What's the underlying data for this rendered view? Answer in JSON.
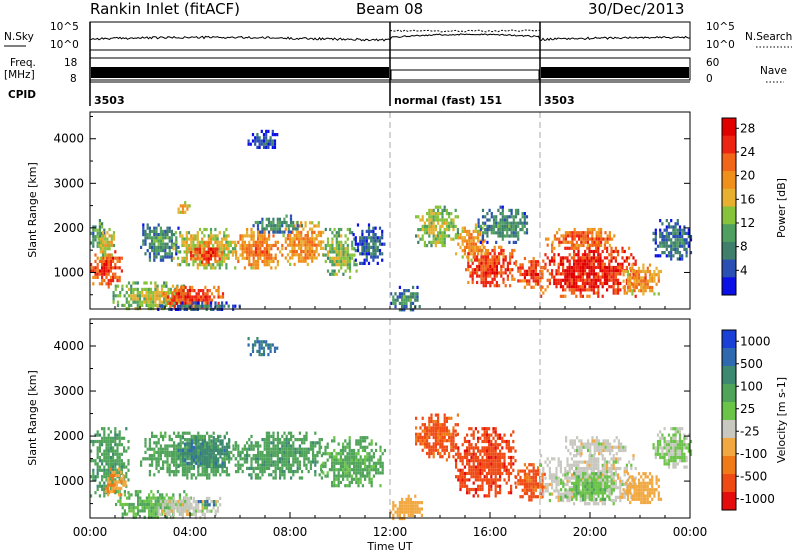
{
  "header": {
    "station": "Rankin Inlet (fitACF)",
    "beam": "Beam 08",
    "date": "30/Dec/2013"
  },
  "strip": {
    "left_top_label": "N.Sky",
    "left_top_ticks": [
      "10^5",
      "10^0"
    ],
    "right_top_label": "N.Search",
    "right_top_ticks": [
      "10^5",
      "10^0"
    ],
    "left_mid_label": "Freq.",
    "left_mid_unit": "[MHz]",
    "left_mid_ticks": [
      "18",
      "8"
    ],
    "right_mid_label": "Nave",
    "right_mid_ticks": [
      "60",
      "0"
    ],
    "cpid_label": "CPID",
    "cpid_segments": [
      {
        "start": 0,
        "end": 12,
        "text": "3503"
      },
      {
        "start": 12,
        "end": 18,
        "text": "normal (fast) 151"
      },
      {
        "start": 18,
        "end": 24,
        "text": "3503"
      }
    ]
  },
  "chart_data": [
    {
      "type": "heatmap",
      "name": "power",
      "xlabel": "",
      "ylabel": "Slant Range [km]",
      "xlim": [
        0,
        24
      ],
      "ylim": [
        180,
        4600
      ],
      "yticks": [
        "1000",
        "2000",
        "3000",
        "4000"
      ],
      "colorbar_label": "Power [dB]",
      "colorbar_ticks": [
        "4",
        "8",
        "12",
        "16",
        "20",
        "24",
        "28"
      ],
      "colorbar_colors": [
        "#0a10e6",
        "#2a50b4",
        "#3f7f6c",
        "#4fa060",
        "#86c23a",
        "#e8b030",
        "#f0901c",
        "#f2661a",
        "#ee2412",
        "#e00000"
      ],
      "gridlines_at_hours": [
        12,
        18
      ],
      "patches": [
        {
          "t0": 0.0,
          "t1": 1.3,
          "r0": 700,
          "r1": 1500,
          "level": 27
        },
        {
          "t0": 0.0,
          "t1": 0.6,
          "r0": 1600,
          "r1": 2200,
          "level": 12
        },
        {
          "t0": 0.3,
          "t1": 1.0,
          "r0": 1300,
          "r1": 2000,
          "level": 18
        },
        {
          "t0": 0.9,
          "t1": 3.9,
          "r0": 200,
          "r1": 800,
          "level": 16
        },
        {
          "t0": 2.9,
          "t1": 5.3,
          "r0": 200,
          "r1": 700,
          "level": 27
        },
        {
          "t0": 2.6,
          "t1": 6.0,
          "r0": 180,
          "r1": 350,
          "level": 8
        },
        {
          "t0": 2.0,
          "t1": 3.5,
          "r0": 1300,
          "r1": 2100,
          "level": 10
        },
        {
          "t0": 3.3,
          "t1": 5.8,
          "r0": 1100,
          "r1": 2000,
          "level": 18
        },
        {
          "t0": 4.0,
          "t1": 5.3,
          "r0": 1250,
          "r1": 1700,
          "level": 27
        },
        {
          "t0": 5.8,
          "t1": 7.7,
          "r0": 1100,
          "r1": 2000,
          "level": 23
        },
        {
          "t0": 7.7,
          "t1": 9.3,
          "r0": 1200,
          "r1": 2150,
          "level": 22
        },
        {
          "t0": 9.3,
          "t1": 10.7,
          "r0": 900,
          "r1": 2000,
          "level": 15
        },
        {
          "t0": 10.5,
          "t1": 11.8,
          "r0": 1200,
          "r1": 2100,
          "level": 7
        },
        {
          "t0": 6.5,
          "t1": 8.5,
          "r0": 1900,
          "r1": 2300,
          "level": 10
        },
        {
          "t0": 12.0,
          "t1": 13.2,
          "r0": 180,
          "r1": 700,
          "level": 10
        },
        {
          "t0": 13.0,
          "t1": 14.7,
          "r0": 1600,
          "r1": 2500,
          "level": 16
        },
        {
          "t0": 14.6,
          "t1": 15.8,
          "r0": 1300,
          "r1": 2100,
          "level": 21
        },
        {
          "t0": 15.0,
          "t1": 17.0,
          "r0": 700,
          "r1": 1600,
          "level": 27
        },
        {
          "t0": 15.5,
          "t1": 17.5,
          "r0": 1700,
          "r1": 2500,
          "level": 10
        },
        {
          "t0": 17.0,
          "t1": 18.2,
          "r0": 650,
          "r1": 1350,
          "level": 27
        },
        {
          "t0": 18.0,
          "t1": 21.8,
          "r0": 500,
          "r1": 1650,
          "level": 29
        },
        {
          "t0": 18.2,
          "t1": 21.0,
          "r0": 1600,
          "r1": 2000,
          "level": 25
        },
        {
          "t0": 21.3,
          "t1": 22.8,
          "r0": 500,
          "r1": 1200,
          "level": 22
        },
        {
          "t0": 22.5,
          "t1": 24.0,
          "r0": 1300,
          "r1": 2200,
          "level": 8
        },
        {
          "t0": 6.3,
          "t1": 7.5,
          "r0": 3800,
          "r1": 4200,
          "level": 5
        },
        {
          "t0": 3.5,
          "t1": 4.0,
          "r0": 2300,
          "r1": 2600,
          "level": 20
        }
      ]
    },
    {
      "type": "heatmap",
      "name": "velocity",
      "xlabel": "Time UT",
      "ylabel": "Slant Range [km]",
      "xlim": [
        0,
        24
      ],
      "ylim": [
        180,
        4600
      ],
      "yticks": [
        "1000",
        "2000",
        "3000",
        "4000"
      ],
      "xticks": [
        "00:00",
        "04:00",
        "08:00",
        "12:00",
        "16:00",
        "20:00",
        "00:00"
      ],
      "colorbar_label": "Velocity [m s-1]",
      "colorbar_ticks": [
        "1000",
        "500",
        "100",
        "25",
        "-25",
        "-100",
        "-500",
        "-1000"
      ],
      "colorbar_colors": [
        "#1a40d8",
        "#2f6ab0",
        "#3d8870",
        "#4fa45a",
        "#6ac448",
        "#c8c8c0",
        "#f2a840",
        "#f07a18",
        "#f04a14",
        "#e40c0c"
      ],
      "gridlines_at_hours": [
        12,
        18
      ],
      "patches": [
        {
          "t0": 0.0,
          "t1": 1.5,
          "r0": 700,
          "r1": 2200,
          "level": 200
        },
        {
          "t0": 0.5,
          "t1": 1.4,
          "r0": 700,
          "r1": 1300,
          "level": -100
        },
        {
          "t0": 1.0,
          "t1": 4.0,
          "r0": 200,
          "r1": 800,
          "level": 100
        },
        {
          "t0": 2.7,
          "t1": 5.2,
          "r0": 200,
          "r1": 650,
          "level": 0
        },
        {
          "t0": 2.0,
          "t1": 5.8,
          "r0": 1100,
          "r1": 2100,
          "level": 150
        },
        {
          "t0": 3.5,
          "t1": 5.6,
          "r0": 1300,
          "r1": 2000,
          "level": 400
        },
        {
          "t0": 5.8,
          "t1": 9.3,
          "r0": 1100,
          "r1": 2100,
          "level": 200
        },
        {
          "t0": 9.2,
          "t1": 11.8,
          "r0": 900,
          "r1": 2000,
          "level": 120
        },
        {
          "t0": 12.0,
          "t1": 13.3,
          "r0": 180,
          "r1": 700,
          "level": -60
        },
        {
          "t0": 13.0,
          "t1": 14.7,
          "r0": 1500,
          "r1": 2500,
          "level": -300
        },
        {
          "t0": 14.6,
          "t1": 17.0,
          "r0": 700,
          "r1": 2200,
          "level": -400
        },
        {
          "t0": 17.0,
          "t1": 18.2,
          "r0": 600,
          "r1": 1400,
          "level": -300
        },
        {
          "t0": 18.0,
          "t1": 21.8,
          "r0": 500,
          "r1": 1600,
          "level": 0
        },
        {
          "t0": 18.8,
          "t1": 21.0,
          "r0": 600,
          "r1": 1200,
          "level": 80
        },
        {
          "t0": 19.0,
          "t1": 21.5,
          "r0": 1600,
          "r1": 2000,
          "level": 0
        },
        {
          "t0": 21.3,
          "t1": 22.8,
          "r0": 500,
          "r1": 1200,
          "level": -60
        },
        {
          "t0": 22.5,
          "t1": 24.0,
          "r0": 1300,
          "r1": 2200,
          "level": 30
        },
        {
          "t0": 6.3,
          "t1": 7.5,
          "r0": 3800,
          "r1": 4200,
          "level": 500
        },
        {
          "t0": 4.3,
          "t1": 5.0,
          "r0": 500,
          "r1": 650,
          "level": 600
        }
      ]
    }
  ]
}
